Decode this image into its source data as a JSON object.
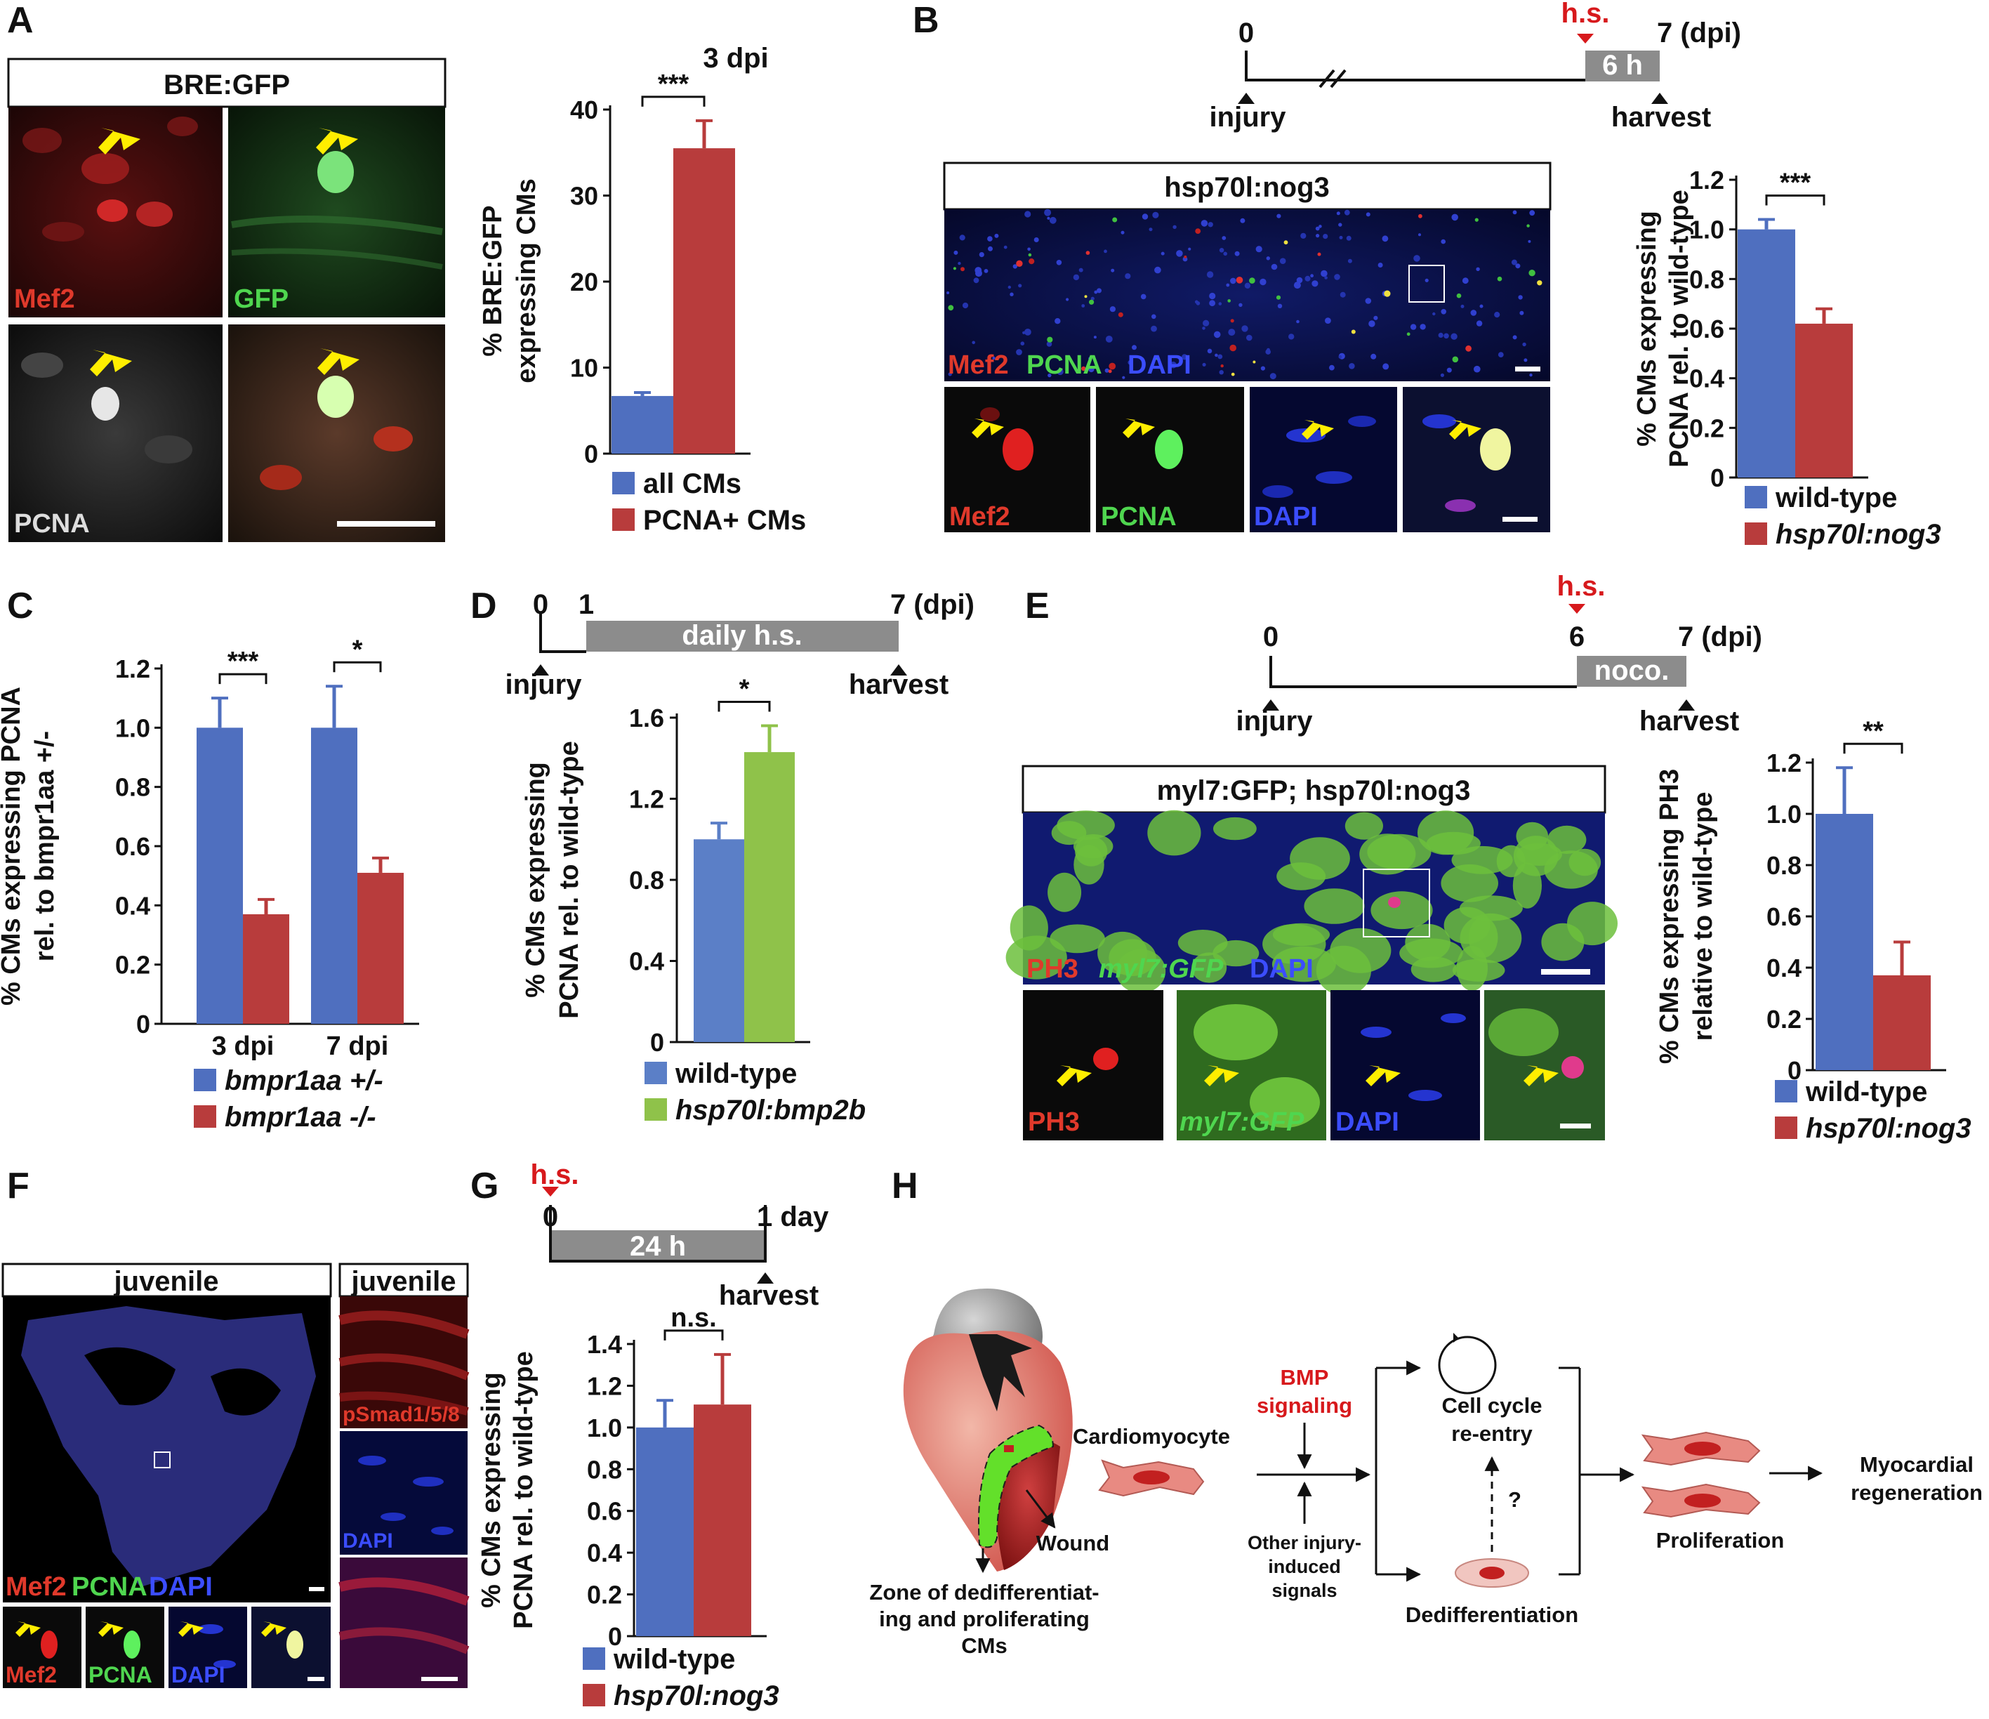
{
  "panel_letters": [
    "A",
    "B",
    "C",
    "D",
    "E",
    "F",
    "G",
    "H"
  ],
  "colors": {
    "blue": "#4f6fbf",
    "red": "#b83c3c",
    "green": "#8fc24a",
    "gray": "#8c8c8c",
    "hs_red": "#d7191c",
    "yellow": "#ffee00"
  },
  "panel_A": {
    "box_title": "BRE:GFP",
    "tiles": [
      {
        "label": "Mef2",
        "color": "#e0392b"
      },
      {
        "label": "GFP",
        "color": "#4fd64f"
      },
      {
        "label": "PCNA",
        "color": "#dddddd"
      },
      {
        "label": "",
        "color": ""
      }
    ]
  },
  "panel_B": {
    "timeline": {
      "start": "0",
      "end": "7 (dpi)",
      "box": "6 h",
      "hs": "h.s.",
      "left_event": "injury",
      "right_event": "harvest"
    },
    "box_title": "hsp70l:nog3",
    "overview_labels": [
      "Mef2",
      "PCNA",
      "DAPI"
    ],
    "tile_labels": [
      "Mef2",
      "PCNA",
      "DAPI",
      ""
    ]
  },
  "panel_D": {
    "timeline": {
      "start": "0",
      "mid": "1",
      "end": "7 (dpi)",
      "box": "daily h.s.",
      "left_event": "injury",
      "right_event": "harvest"
    }
  },
  "panel_E": {
    "timeline": {
      "start": "0",
      "mid": "6",
      "end": "7 (dpi)",
      "box": "noco.",
      "hs": "h.s.",
      "left_event": "injury",
      "right_event": "harvest"
    },
    "box_title": "myl7:GFP; hsp70l:nog3",
    "overview_labels": [
      "PH3",
      "myl7:GFP",
      "DAPI"
    ],
    "tile_labels": [
      "PH3",
      "myl7:GFP",
      "DAPI",
      ""
    ]
  },
  "panel_F": {
    "box_title_left": "juvenile",
    "box_title_right": "juvenile",
    "overview_labels": [
      "Mef2",
      "PCNA",
      "DAPI"
    ],
    "tile_labels": [
      "Mef2",
      "PCNA",
      "DAPI",
      ""
    ],
    "right_labels": [
      "pSmad1/5/8",
      "DAPI",
      ""
    ]
  },
  "panel_G": {
    "timeline": {
      "start": "0",
      "end": "1 day",
      "box": "24 h",
      "hs": "h.s.",
      "right_event": "harvest"
    }
  },
  "panel_H": {
    "cardiomyocyte": "Cardiomyocyte",
    "wound": "Wound",
    "zone": [
      "Zone of dedifferentiat-",
      "ing and proliferating",
      "CMs"
    ],
    "bmp": [
      "BMP",
      "signaling"
    ],
    "other": [
      "Other injury-",
      "induced",
      "signals"
    ],
    "cell_cycle": [
      "Cell cycle",
      "re-entry"
    ],
    "question": "?",
    "dediff": "Dedifferentiation",
    "prolif": "Proliferation",
    "regen": [
      "Myocardial",
      "regeneration"
    ]
  },
  "chart_data": [
    {
      "id": "A",
      "type": "bar",
      "title": "3 dpi",
      "ylabel": [
        "% BRE:GFP",
        "expressing CMs"
      ],
      "ylim": [
        0,
        40
      ],
      "yticks": [
        0,
        10,
        20,
        30,
        40
      ],
      "categories": [
        ""
      ],
      "series": [
        {
          "name": "all CMs",
          "color": "#4f6fbf",
          "values": [
            6.7
          ],
          "errors": [
            0.4
          ]
        },
        {
          "name": "PCNA+ CMs",
          "color": "#b83c3c",
          "values": [
            35.5
          ],
          "errors": [
            3.2
          ]
        }
      ],
      "significance": [
        {
          "label": "***",
          "from": 0,
          "to": 1
        }
      ]
    },
    {
      "id": "B",
      "type": "bar",
      "ylabel": [
        "% CMs expressing",
        "PCNA rel. to wild-type"
      ],
      "ylim": [
        0,
        1.2
      ],
      "yticks": [
        "0",
        "0.2",
        "0.4",
        "0.6",
        "0.8",
        "1.0",
        "1.2"
      ],
      "categories": [
        ""
      ],
      "series": [
        {
          "name": "wild-type",
          "color": "#4f6fbf",
          "values": [
            1.0
          ],
          "errors": [
            0.04
          ]
        },
        {
          "name": "hsp70l:nog3",
          "color": "#b83c3c",
          "values": [
            0.62
          ],
          "errors": [
            0.06
          ]
        }
      ],
      "significance": [
        {
          "label": "***",
          "from": 0,
          "to": 1
        }
      ]
    },
    {
      "id": "C",
      "type": "bar",
      "ylabel": [
        "% CMs expressing PCNA",
        "rel. to bmpr1aa +/-"
      ],
      "ylim": [
        0,
        1.2
      ],
      "yticks": [
        "0",
        "0.2",
        "0.4",
        "0.6",
        "0.8",
        "1.0",
        "1.2"
      ],
      "categories": [
        "3 dpi",
        "7 dpi"
      ],
      "series": [
        {
          "name": "bmpr1aa +/-",
          "color": "#4f6fbf",
          "values": [
            1.0,
            1.0
          ],
          "errors": [
            0.1,
            0.14
          ]
        },
        {
          "name": "bmpr1aa -/-",
          "color": "#b83c3c",
          "values": [
            0.37,
            0.51
          ],
          "errors": [
            0.05,
            0.05
          ]
        }
      ],
      "significance": [
        {
          "label": "***",
          "group": 0
        },
        {
          "label": "*",
          "group": 1
        }
      ]
    },
    {
      "id": "D",
      "type": "bar",
      "ylabel": [
        "% CMs expressing",
        "PCNA rel. to wild-type"
      ],
      "ylim": [
        0,
        1.6
      ],
      "yticks": [
        "0",
        "0.4",
        "0.8",
        "1.2",
        "1.6"
      ],
      "categories": [
        ""
      ],
      "series": [
        {
          "name": "wild-type",
          "color": "#5b7fc7",
          "values": [
            1.0
          ],
          "errors": [
            0.08
          ]
        },
        {
          "name": "hsp70l:bmp2b",
          "color": "#8fc24a",
          "values": [
            1.43
          ],
          "errors": [
            0.13
          ]
        }
      ],
      "significance": [
        {
          "label": "*",
          "from": 0,
          "to": 1
        }
      ]
    },
    {
      "id": "E",
      "type": "bar",
      "ylabel": [
        "% CMs expressing PH3",
        "relative to wild-type"
      ],
      "ylim": [
        0,
        1.2
      ],
      "yticks": [
        "0",
        "0.2",
        "0.4",
        "0.6",
        "0.8",
        "1.0",
        "1.2"
      ],
      "categories": [
        ""
      ],
      "series": [
        {
          "name": "wild-type",
          "color": "#4f6fbf",
          "values": [
            1.0
          ],
          "errors": [
            0.18
          ]
        },
        {
          "name": "hsp70l:nog3",
          "color": "#b83c3c",
          "values": [
            0.37
          ],
          "errors": [
            0.13
          ]
        }
      ],
      "significance": [
        {
          "label": "**",
          "from": 0,
          "to": 1
        }
      ]
    },
    {
      "id": "G",
      "type": "bar",
      "ylabel": [
        "% CMs expressing",
        "PCNA rel. to wild-type"
      ],
      "ylim": [
        0,
        1.4
      ],
      "yticks": [
        "0",
        "0.2",
        "0.4",
        "0.6",
        "0.8",
        "1.0",
        "1.2",
        "1.4"
      ],
      "categories": [
        ""
      ],
      "series": [
        {
          "name": "wild-type",
          "color": "#4f6fbf",
          "values": [
            1.0
          ],
          "errors": [
            0.13
          ]
        },
        {
          "name": "hsp70l:nog3",
          "color": "#b83c3c",
          "values": [
            1.11
          ],
          "errors": [
            0.24
          ]
        }
      ],
      "significance": [
        {
          "label": "n.s.",
          "from": 0,
          "to": 1
        }
      ]
    }
  ]
}
